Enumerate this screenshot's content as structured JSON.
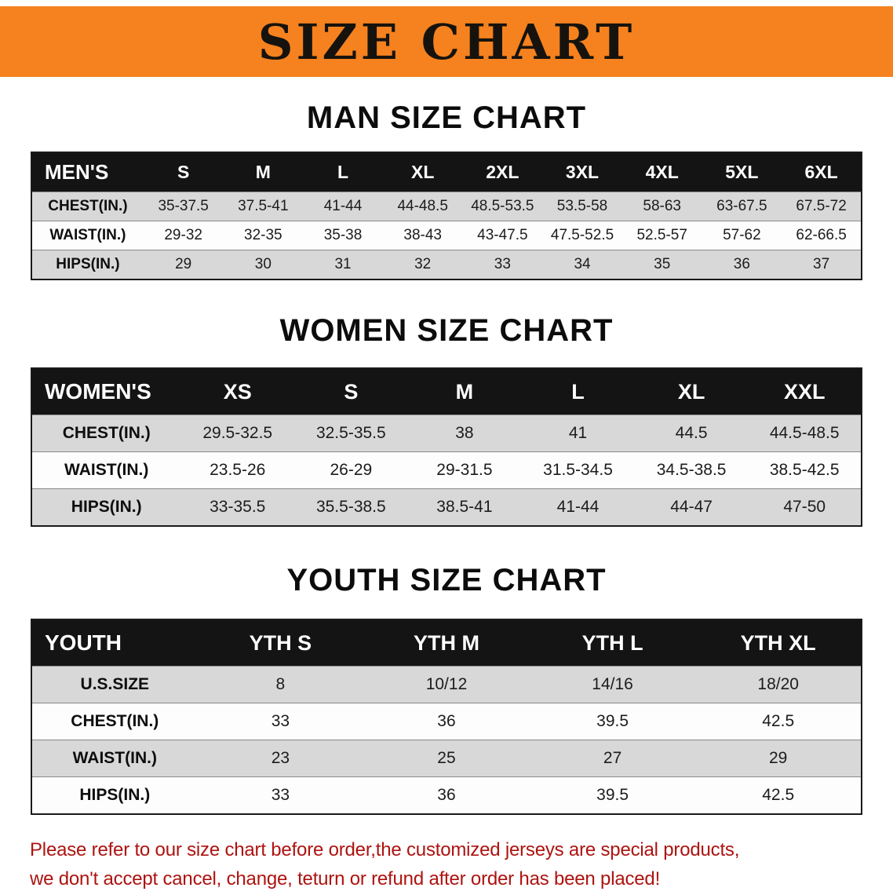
{
  "banner": {
    "title": "SIZE CHART",
    "bg_color": "#f5821f",
    "text_color": "#16130e"
  },
  "sections": {
    "men": {
      "heading": "MAN SIZE CHART",
      "table": {
        "header": [
          "MEN'S",
          "S",
          "M",
          "L",
          "XL",
          "2XL",
          "3XL",
          "4XL",
          "5XL",
          "6XL"
        ],
        "rows": [
          {
            "label": "CHEST(IN.)",
            "values": [
              "35-37.5",
              "37.5-41",
              "41-44",
              "44-48.5",
              "48.5-53.5",
              "53.5-58",
              "58-63",
              "63-67.5",
              "67.5-72"
            ]
          },
          {
            "label": "WAIST(IN.)",
            "values": [
              "29-32",
              "32-35",
              "35-38",
              "38-43",
              "43-47.5",
              "47.5-52.5",
              "52.5-57",
              "57-62",
              "62-66.5"
            ]
          },
          {
            "label": "HIPS(IN.)",
            "values": [
              "29",
              "30",
              "31",
              "32",
              "33",
              "34",
              "35",
              "36",
              "37"
            ]
          }
        ]
      }
    },
    "women": {
      "heading": "WOMEN SIZE CHART",
      "table": {
        "header": [
          "WOMEN'S",
          "XS",
          "S",
          "M",
          "L",
          "XL",
          "XXL"
        ],
        "rows": [
          {
            "label": "CHEST(IN.)",
            "values": [
              "29.5-32.5",
              "32.5-35.5",
              "38",
              "41",
              "44.5",
              "44.5-48.5"
            ]
          },
          {
            "label": "WAIST(IN.)",
            "values": [
              "23.5-26",
              "26-29",
              "29-31.5",
              "31.5-34.5",
              "34.5-38.5",
              "38.5-42.5"
            ]
          },
          {
            "label": "HIPS(IN.)",
            "values": [
              "33-35.5",
              "35.5-38.5",
              "38.5-41",
              "41-44",
              "44-47",
              "47-50"
            ]
          }
        ]
      }
    },
    "youth": {
      "heading": "YOUTH SIZE CHART",
      "table": {
        "header": [
          "YOUTH",
          "YTH S",
          "YTH M",
          "YTH L",
          "YTH XL"
        ],
        "rows": [
          {
            "label": "U.S.SIZE",
            "values": [
              "8",
              "10/12",
              "14/16",
              "18/20"
            ]
          },
          {
            "label": "CHEST(IN.)",
            "values": [
              "33",
              "36",
              "39.5",
              "42.5"
            ]
          },
          {
            "label": "WAIST(IN.)",
            "values": [
              "23",
              "25",
              "27",
              "29"
            ]
          },
          {
            "label": "HIPS(IN.)",
            "values": [
              "33",
              "36",
              "39.5",
              "42.5"
            ]
          }
        ]
      }
    }
  },
  "table_colors": {
    "header_bg": "#141414",
    "header_text": "#ffffff",
    "row_shade": "#d8d8d8"
  },
  "footer": {
    "line1": "Please refer to our size chart before order,the customized jerseys are special products,",
    "line2": "we don't accept cancel, change, teturn or refund after order has been placed!",
    "text_color": "#ad1310"
  }
}
